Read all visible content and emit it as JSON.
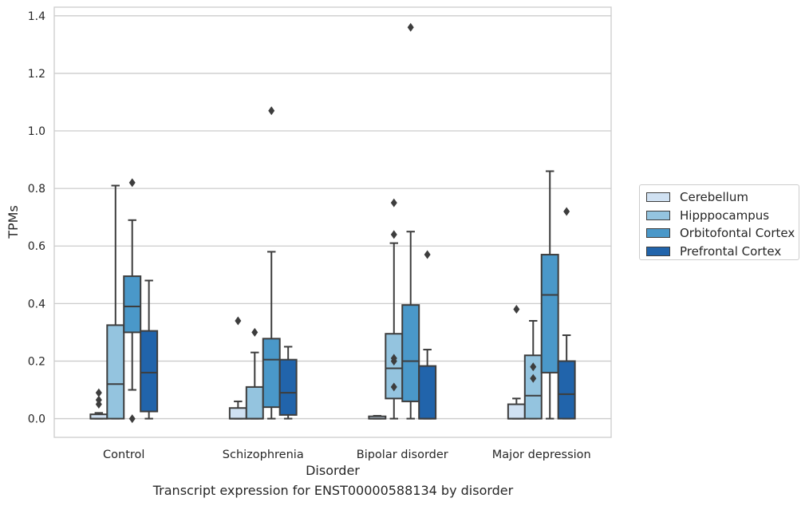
{
  "caption": "Transcript expression for ENST00000588134 by disorder",
  "chart_data": {
    "type": "boxplot",
    "xlabel": "Disorder",
    "ylabel": "TPMs",
    "ylim": [
      -0.065,
      1.43
    ],
    "yticks": [
      "0.0",
      "0.2",
      "0.4",
      "0.6",
      "0.8",
      "1.0",
      "1.2",
      "1.4"
    ],
    "grid": "horizontal",
    "legend_position": "right",
    "categories": [
      "Control",
      "Schizophrenia",
      "Bipolar disorder",
      "Major depression"
    ],
    "series": [
      {
        "name": "Cerebellum",
        "color": "#d0e1f2",
        "boxes": [
          {
            "whislo": 0.0,
            "q1": 0.0,
            "med": 0.0,
            "q3": 0.015,
            "whishi": 0.02,
            "fliers": [
              0.05,
              0.065,
              0.09
            ]
          },
          {
            "whislo": 0.0,
            "q1": 0.0,
            "med": 0.0,
            "q3": 0.037,
            "whishi": 0.06,
            "fliers": [
              0.34
            ]
          },
          {
            "whislo": 0.0,
            "q1": 0.0,
            "med": 0.0,
            "q3": 0.008,
            "whishi": 0.01,
            "fliers": []
          },
          {
            "whislo": 0.0,
            "q1": 0.0,
            "med": 0.0,
            "q3": 0.05,
            "whishi": 0.07,
            "fliers": [
              0.38
            ]
          }
        ]
      },
      {
        "name": "Hipppocampus",
        "color": "#94c4df",
        "boxes": [
          {
            "whislo": 0.0,
            "q1": 0.0,
            "med": 0.12,
            "q3": 0.325,
            "whishi": 0.81,
            "fliers": []
          },
          {
            "whislo": 0.0,
            "q1": 0.0,
            "med": 0.0,
            "q3": 0.11,
            "whishi": 0.23,
            "fliers": [
              0.3
            ]
          },
          {
            "whislo": 0.0,
            "q1": 0.07,
            "med": 0.175,
            "q3": 0.295,
            "whishi": 0.61,
            "fliers": [
              0.11,
              0.2,
              0.21,
              0.64,
              0.75
            ]
          },
          {
            "whislo": 0.0,
            "q1": 0.0,
            "med": 0.08,
            "q3": 0.22,
            "whishi": 0.34,
            "fliers": [
              0.14,
              0.18
            ]
          }
        ]
      },
      {
        "name": "Orbitofontal Cortex",
        "color": "#4a98c9",
        "boxes": [
          {
            "whislo": 0.1,
            "q1": 0.3,
            "med": 0.39,
            "q3": 0.495,
            "whishi": 0.69,
            "fliers": [
              0.0,
              0.82
            ]
          },
          {
            "whislo": 0.0,
            "q1": 0.04,
            "med": 0.205,
            "q3": 0.278,
            "whishi": 0.58,
            "fliers": [
              1.07
            ]
          },
          {
            "whislo": 0.0,
            "q1": 0.06,
            "med": 0.2,
            "q3": 0.395,
            "whishi": 0.65,
            "fliers": [
              1.36
            ]
          },
          {
            "whislo": 0.0,
            "q1": 0.16,
            "med": 0.43,
            "q3": 0.57,
            "whishi": 0.86,
            "fliers": []
          }
        ]
      },
      {
        "name": "Prefrontal Cortex",
        "color": "#2164ab",
        "boxes": [
          {
            "whislo": 0.0,
            "q1": 0.025,
            "med": 0.16,
            "q3": 0.305,
            "whishi": 0.48,
            "fliers": []
          },
          {
            "whislo": 0.0,
            "q1": 0.013,
            "med": 0.09,
            "q3": 0.205,
            "whishi": 0.25,
            "fliers": []
          },
          {
            "whislo": 0.0,
            "q1": 0.0,
            "med": 0.0,
            "q3": 0.183,
            "whishi": 0.24,
            "fliers": [
              0.57
            ]
          },
          {
            "whislo": 0.0,
            "q1": 0.0,
            "med": 0.085,
            "q3": 0.2,
            "whishi": 0.29,
            "fliers": [
              0.72
            ]
          }
        ]
      }
    ]
  }
}
